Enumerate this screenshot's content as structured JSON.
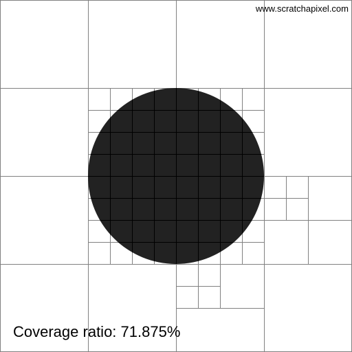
{
  "watermark_text": "www.scratchapixel.com",
  "caption": {
    "label": "Coverage ratio:",
    "value": "71.875%"
  },
  "colors": {
    "background": "#ffffff",
    "grid_line": "#808080",
    "circle_fill": "#222222",
    "inner_grid_line": "#000000"
  }
}
